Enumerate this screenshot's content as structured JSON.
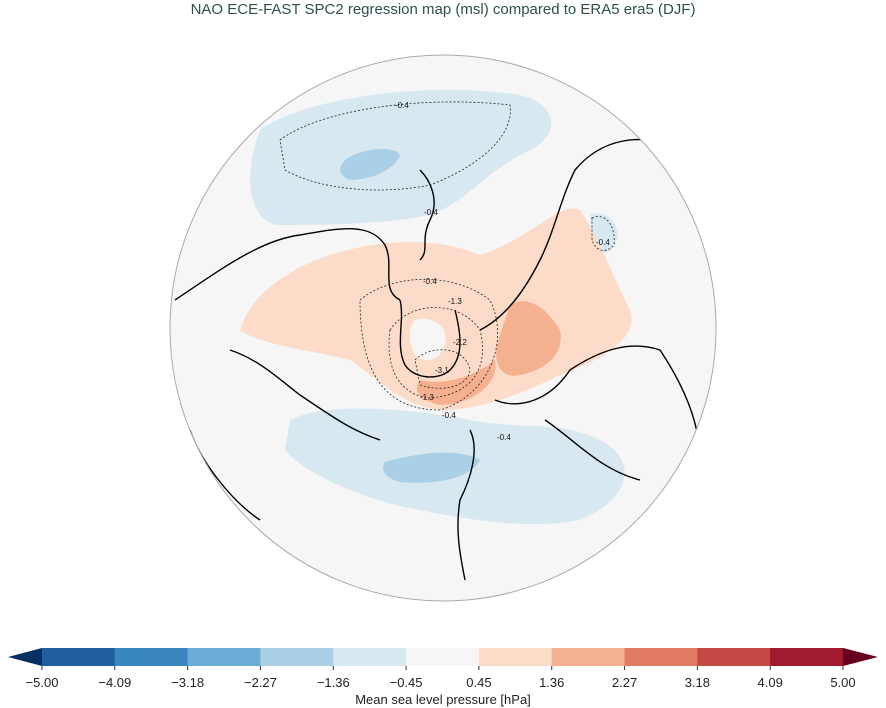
{
  "title": "NAO ECE-FAST SPC2 regression map (msl) compared to ERA5 era5 (DJF)",
  "map": {
    "projection": "north-polar-stereographic",
    "contour_labels": [
      "-0.4",
      "-0.4",
      "-0.4",
      "-0.4",
      "-1.3",
      "-2.2",
      "-3.1",
      "-1.3",
      "-0.4",
      "-0.4"
    ]
  },
  "colorbar": {
    "label": "Mean sea level pressure [hPa]",
    "ticks": [
      "−5.00",
      "−4.09",
      "−3.18",
      "−2.27",
      "−1.36",
      "−0.45",
      "0.45",
      "1.36",
      "2.27",
      "3.18",
      "4.09",
      "5.00"
    ],
    "colors": [
      "#1f5fa0",
      "#3a87c0",
      "#6baed5",
      "#a9d0e5",
      "#d8e8f1",
      "#f6f6f6",
      "#fcdcc9",
      "#f5b08f",
      "#e27b63",
      "#c44843",
      "#a11a2d"
    ],
    "under_color": "#053061",
    "over_color": "#67001f",
    "extend": "both"
  }
}
